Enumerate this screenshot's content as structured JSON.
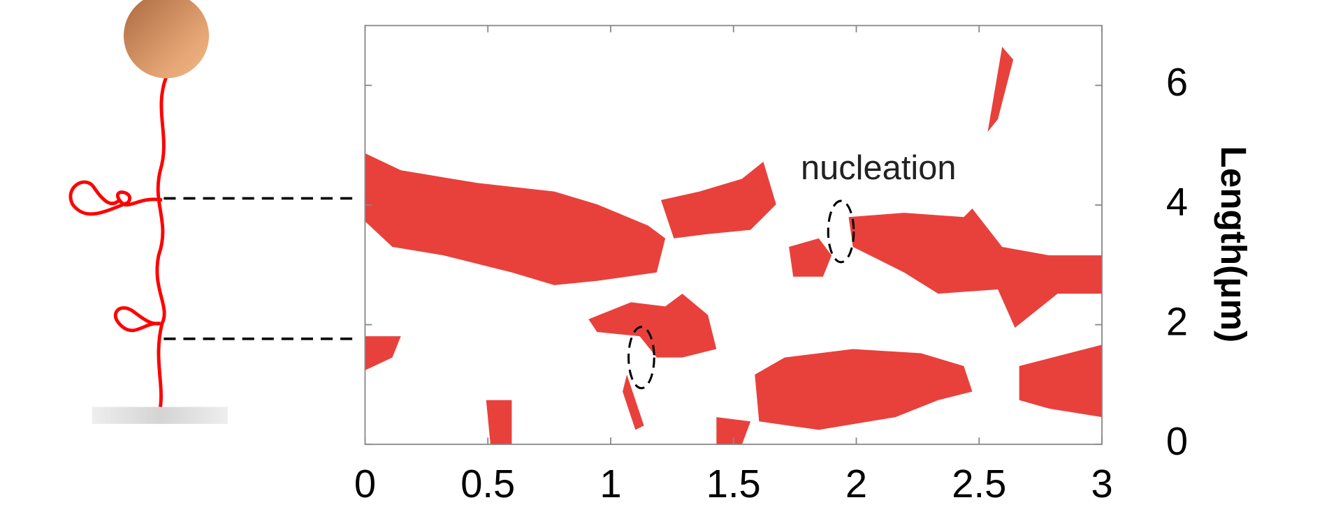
{
  "chart_data": {
    "type": "kymograph",
    "annotation": "nucleation",
    "y_label": "Length(μm)",
    "xlim": [
      0,
      3
    ],
    "xticks": [
      0,
      0.5,
      1,
      1.5,
      2,
      2.5,
      3
    ],
    "ylim": [
      0,
      7
    ],
    "yticks": [
      0,
      2,
      4,
      6
    ],
    "color": "#e8413c"
  }
}
